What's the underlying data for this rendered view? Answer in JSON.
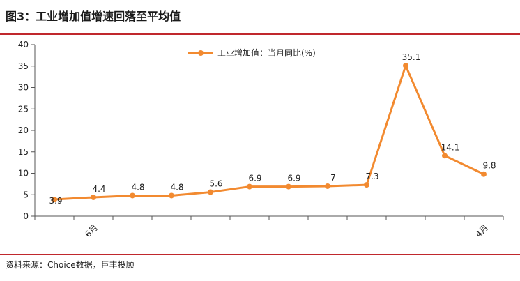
{
  "header": {
    "title": "图3：工业增加值增速回落至平均值"
  },
  "footer": {
    "source": "资料来源：Choice数据，巨丰投顾"
  },
  "colors": {
    "accent": "#c0282d",
    "series": "#f28a30",
    "axis": "#555555"
  },
  "chart_data": {
    "type": "line",
    "title": "",
    "xlabel": "",
    "ylabel": "",
    "ylim": [
      0,
      40
    ],
    "yticks": [
      "0",
      "5",
      "10",
      "15",
      "20",
      "25",
      "30",
      "35",
      "40"
    ],
    "x": [
      "",
      "6月",
      "",
      "",
      "",
      "",
      "",
      "",
      "",
      "",
      "",
      "4月"
    ],
    "legend": {
      "position": "top-center",
      "label": "工业增加值：当月同比(%)"
    },
    "grid": false,
    "series": [
      {
        "name": "工业增加值：当月同比(%)",
        "values": [
          3.9,
          4.4,
          4.8,
          4.8,
          5.6,
          6.9,
          6.9,
          7,
          7.3,
          35.1,
          14.1,
          9.8
        ],
        "labels": [
          "3.9",
          "4.4",
          "4.8",
          "4.8",
          "5.6",
          "6.9",
          "6.9",
          "7",
          "7.3",
          "35.1",
          "14.1",
          "9.8"
        ]
      }
    ]
  }
}
